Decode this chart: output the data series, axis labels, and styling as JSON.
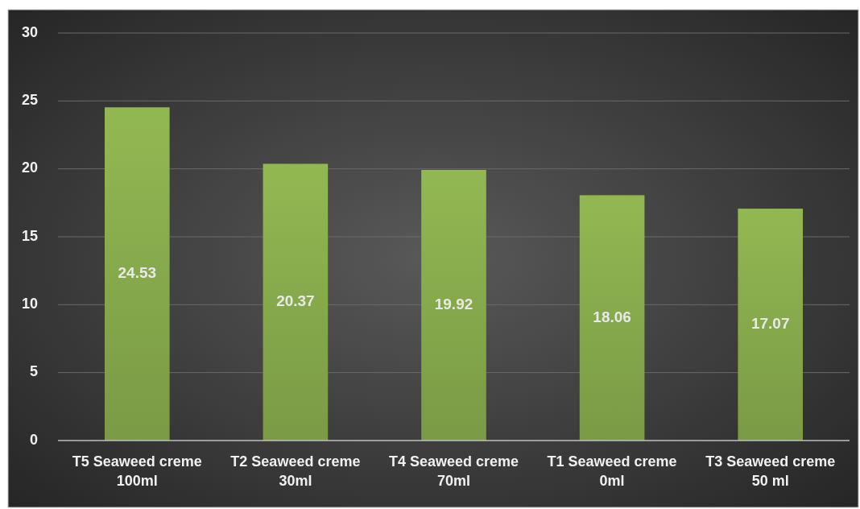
{
  "chart_data": {
    "type": "bar",
    "categories": [
      "T5 Seaweed creme\n100ml",
      "T2 Seaweed creme\n30ml",
      "T4 Seaweed creme\n70ml",
      "T1 Seaweed creme\n0ml",
      "T3 Seaweed creme\n50 ml"
    ],
    "values": [
      24.53,
      20.37,
      19.92,
      18.06,
      17.07
    ],
    "color": "#7a9a45",
    "ylim": [
      0,
      30
    ],
    "yticks": [
      0,
      5,
      10,
      15,
      20,
      25,
      30
    ],
    "grid": "y",
    "data_labels": true
  }
}
